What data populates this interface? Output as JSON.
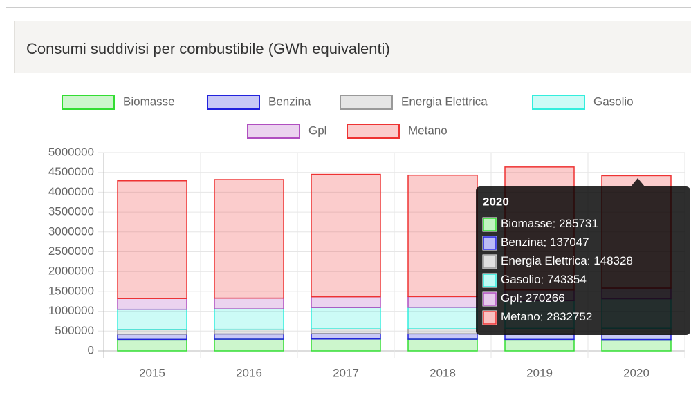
{
  "chart_data": {
    "type": "bar",
    "stacked": true,
    "title": "Consumi suddivisi per combustibile (GWh equivalenti)",
    "categories": [
      "2015",
      "2016",
      "2017",
      "2018",
      "2019",
      "2020"
    ],
    "series": [
      {
        "name": "Biomasse",
        "color": "#33dd33",
        "values": [
          290000,
          295000,
          300000,
          295000,
          290000,
          285731
        ]
      },
      {
        "name": "Benzina",
        "color": "#2222dd",
        "values": [
          130000,
          130000,
          135000,
          135000,
          137000,
          137047
        ]
      },
      {
        "name": "Energia Elettrica",
        "color": "#999999",
        "values": [
          120000,
          120000,
          120000,
          125000,
          140000,
          148328
        ]
      },
      {
        "name": "Gasolio",
        "color": "#33eedd",
        "values": [
          510000,
          515000,
          540000,
          545000,
          700000,
          743354
        ]
      },
      {
        "name": "Gpl",
        "color": "#b04fc0",
        "values": [
          270000,
          270000,
          270000,
          270000,
          270000,
          270266
        ]
      },
      {
        "name": "Metano",
        "color": "#ee3333",
        "values": [
          2970000,
          2990000,
          3085000,
          3060000,
          3100000,
          2832752
        ]
      }
    ],
    "ylim": [
      0,
      5000000
    ],
    "yticks": [
      0,
      500000,
      1000000,
      1500000,
      2000000,
      2500000,
      3000000,
      3500000,
      4000000,
      4500000,
      5000000
    ],
    "grid": true,
    "legend": "top",
    "tooltip_index": 5
  }
}
